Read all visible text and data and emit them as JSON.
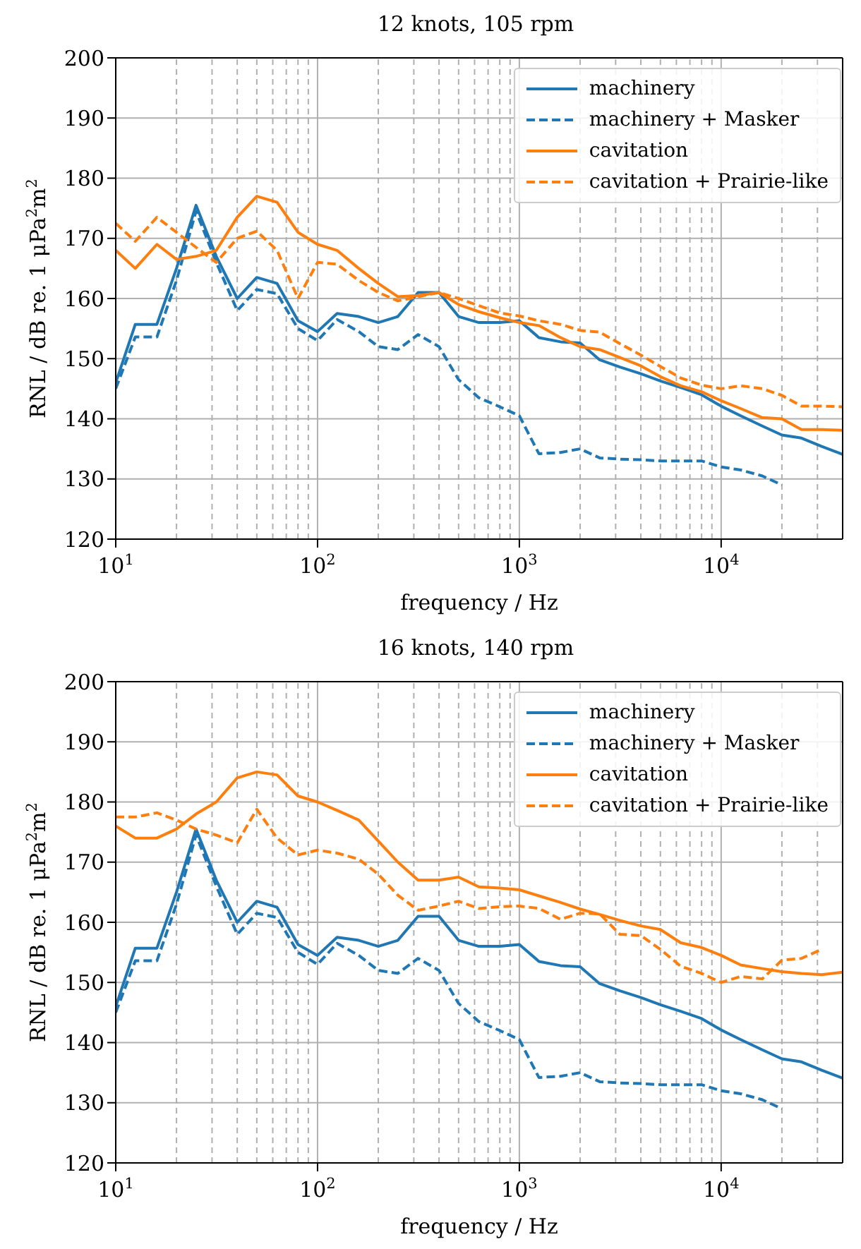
{
  "chart_data": [
    {
      "type": "line",
      "title": "12 knots, 105 rpm",
      "xlabel": "frequency / Hz",
      "ylabel": "RNL / dB re. 1 μPa$^{2}$m$^{2}$",
      "log": "x",
      "grid": true,
      "legend": "top right",
      "marker": "none",
      "x": [
        10,
        12.5,
        16,
        20,
        25,
        31.5,
        40,
        50,
        63,
        80,
        100,
        125,
        160,
        200,
        250,
        315,
        400,
        500,
        630,
        800,
        1000,
        1250,
        1600,
        2000,
        2500,
        3150,
        4000,
        5000,
        6300,
        8000,
        10000,
        12500,
        16000,
        20000,
        25000,
        31500,
        40000
      ],
      "xlim": [
        10,
        40000
      ],
      "ylim": [
        120,
        200
      ],
      "yticks": [
        120,
        130,
        140,
        150,
        160,
        170,
        180,
        190,
        200
      ],
      "xticks": [
        {
          "value": 10,
          "label": "10$^{1}$"
        },
        {
          "value": 20,
          "label": null
        },
        {
          "value": 30,
          "label": null
        },
        {
          "value": 40,
          "label": null
        },
        {
          "value": 50,
          "label": null
        },
        {
          "value": 60,
          "label": null
        },
        {
          "value": 70,
          "label": null
        },
        {
          "value": 80,
          "label": null
        },
        {
          "value": 90,
          "label": null
        },
        {
          "value": 100,
          "label": "10$^{2}$"
        },
        {
          "value": 200,
          "label": null
        },
        {
          "value": 300,
          "label": null
        },
        {
          "value": 400,
          "label": null
        },
        {
          "value": 500,
          "label": null
        },
        {
          "value": 600,
          "label": null
        },
        {
          "value": 700,
          "label": null
        },
        {
          "value": 800,
          "label": null
        },
        {
          "value": 900,
          "label": null
        },
        {
          "value": 1000,
          "label": "10$^{3}$"
        },
        {
          "value": 2000,
          "label": null
        },
        {
          "value": 3000,
          "label": null
        },
        {
          "value": 4000,
          "label": null
        },
        {
          "value": 5000,
          "label": null
        },
        {
          "value": 6000,
          "label": null
        },
        {
          "value": 7000,
          "label": null
        },
        {
          "value": 8000,
          "label": null
        },
        {
          "value": 9000,
          "label": null
        },
        {
          "value": 10000,
          "label": "10$^{4}$"
        },
        {
          "value": 20000,
          "label": null
        },
        {
          "value": 30000,
          "label": null
        }
      ],
      "series": [
        {
          "name": "machinery",
          "color": "#1f77b4",
          "line_style": "solid",
          "values": [
            146,
            155.7,
            155.7,
            165,
            175.5,
            167,
            160,
            163.5,
            162.5,
            156.3,
            154.5,
            157.5,
            157,
            156,
            157,
            161,
            161,
            157,
            156,
            156,
            156.3,
            153.5,
            152.8,
            152.6,
            149.8,
            148.6,
            147.5,
            146.3,
            145.2,
            144,
            142.1,
            140.5,
            138.8,
            137.3,
            136.8,
            135.4,
            134.1
          ]
        },
        {
          "name": "machinery + Masker",
          "color": "#1f77b4",
          "line_style": "dashed",
          "values": [
            145,
            153.6,
            153.6,
            163,
            174.5,
            166,
            158,
            161.5,
            160.8,
            155,
            153,
            156.5,
            154.5,
            152,
            151.5,
            154,
            152,
            146.5,
            143.5,
            142,
            140.5,
            134.2,
            134.4,
            135,
            133.5,
            133.3,
            133.2,
            133,
            133,
            133,
            132,
            131.5,
            130.5,
            129,
            null,
            null,
            null
          ]
        },
        {
          "name": "cavitation",
          "color": "#ff7f0e",
          "line_style": "solid",
          "values": [
            168,
            165,
            169,
            166.5,
            167,
            168,
            173.5,
            177,
            176,
            171,
            169,
            168,
            165,
            162.5,
            160.3,
            160.5,
            161,
            159,
            157.8,
            156.8,
            156,
            155.5,
            153.5,
            152,
            151.5,
            150.2,
            148.8,
            147,
            145.5,
            144.5,
            143,
            141.7,
            140.2,
            140,
            138.2,
            138.2,
            138.1
          ]
        },
        {
          "name": "cavitation + Prairie-like",
          "color": "#ff7f0e",
          "line_style": "dashed",
          "values": [
            172.5,
            169.5,
            173.5,
            171,
            168.5,
            166,
            170,
            171.2,
            168,
            160,
            166,
            165.7,
            163,
            161,
            159.6,
            160.3,
            161,
            160,
            158.8,
            157.6,
            157.1,
            156.3,
            155.7,
            154.7,
            154.4,
            152.5,
            150.6,
            148.7,
            146.8,
            145.6,
            145,
            145.5,
            145,
            143.9,
            142.1,
            142.1,
            142
          ]
        }
      ]
    },
    {
      "type": "line",
      "title": "16 knots, 140 rpm",
      "xlabel": "frequency / Hz",
      "ylabel": "RNL / dB re. 1 μPa$^{2}$m$^{2}$",
      "log": "x",
      "grid": true,
      "legend": "top right",
      "marker": "none",
      "x": [
        10,
        12.5,
        16,
        20,
        25,
        31.5,
        40,
        50,
        63,
        80,
        100,
        125,
        160,
        200,
        250,
        315,
        400,
        500,
        630,
        800,
        1000,
        1250,
        1600,
        2000,
        2500,
        3150,
        4000,
        5000,
        6300,
        8000,
        10000,
        12500,
        16000,
        20000,
        25000,
        31500,
        40000
      ],
      "xlim": [
        10,
        40000
      ],
      "ylim": [
        120,
        200
      ],
      "yticks": [
        120,
        130,
        140,
        150,
        160,
        170,
        180,
        190,
        200
      ],
      "xticks": [
        {
          "value": 10,
          "label": "10$^{1}$"
        },
        {
          "value": 20,
          "label": null
        },
        {
          "value": 30,
          "label": null
        },
        {
          "value": 40,
          "label": null
        },
        {
          "value": 50,
          "label": null
        },
        {
          "value": 60,
          "label": null
        },
        {
          "value": 70,
          "label": null
        },
        {
          "value": 80,
          "label": null
        },
        {
          "value": 90,
          "label": null
        },
        {
          "value": 100,
          "label": "10$^{2}$"
        },
        {
          "value": 200,
          "label": null
        },
        {
          "value": 300,
          "label": null
        },
        {
          "value": 400,
          "label": null
        },
        {
          "value": 500,
          "label": null
        },
        {
          "value": 600,
          "label": null
        },
        {
          "value": 700,
          "label": null
        },
        {
          "value": 800,
          "label": null
        },
        {
          "value": 900,
          "label": null
        },
        {
          "value": 1000,
          "label": "10$^{3}$"
        },
        {
          "value": 2000,
          "label": null
        },
        {
          "value": 3000,
          "label": null
        },
        {
          "value": 4000,
          "label": null
        },
        {
          "value": 5000,
          "label": null
        },
        {
          "value": 6000,
          "label": null
        },
        {
          "value": 7000,
          "label": null
        },
        {
          "value": 8000,
          "label": null
        },
        {
          "value": 9000,
          "label": null
        },
        {
          "value": 10000,
          "label": "10$^{4}$"
        },
        {
          "value": 20000,
          "label": null
        },
        {
          "value": 30000,
          "label": null
        }
      ],
      "series": [
        {
          "name": "machinery",
          "color": "#1f77b4",
          "line_style": "solid",
          "values": [
            146,
            155.7,
            155.7,
            165,
            175.5,
            167,
            160,
            163.5,
            162.5,
            156.3,
            154.5,
            157.5,
            157,
            156,
            157,
            161,
            161,
            157,
            156,
            156,
            156.3,
            153.5,
            152.8,
            152.6,
            149.8,
            148.6,
            147.5,
            146.3,
            145.2,
            144,
            142.1,
            140.5,
            138.8,
            137.3,
            136.8,
            135.4,
            134.1
          ]
        },
        {
          "name": "machinery + Masker",
          "color": "#1f77b4",
          "line_style": "dashed",
          "values": [
            145,
            153.6,
            153.6,
            163,
            174.5,
            166,
            158,
            161.5,
            160.8,
            155,
            153,
            156.5,
            154.5,
            152,
            151.5,
            154,
            152,
            146.5,
            143.5,
            142,
            140.5,
            134.2,
            134.4,
            135,
            133.5,
            133.3,
            133.2,
            133,
            133,
            133,
            132,
            131.5,
            130.5,
            129,
            null,
            null,
            null
          ]
        },
        {
          "name": "cavitation",
          "color": "#ff7f0e",
          "line_style": "solid",
          "values": [
            176,
            174,
            174,
            175.5,
            178,
            180,
            184,
            185,
            184.5,
            181,
            180,
            178.6,
            177,
            173.5,
            170,
            167,
            167,
            167.5,
            165.9,
            165.7,
            165.4,
            164.4,
            163.3,
            162.2,
            161.3,
            160.3,
            159.4,
            158.8,
            156.6,
            155.8,
            154.5,
            152.9,
            152.3,
            151.8,
            151.5,
            151.3,
            151.7
          ]
        },
        {
          "name": "cavitation + Prairie-like",
          "color": "#ff7f0e",
          "line_style": "dashed",
          "values": [
            177.5,
            177.5,
            178.2,
            177,
            175.5,
            174.5,
            173.2,
            178.8,
            174,
            171.2,
            172,
            171.5,
            170.5,
            168,
            164.5,
            162,
            162.7,
            163.5,
            162.3,
            162.6,
            162.7,
            162.3,
            160.5,
            161.5,
            161.4,
            158,
            157.8,
            155.5,
            152.7,
            151.5,
            150,
            151,
            150.6,
            153.7,
            154,
            155.5,
            null
          ]
        }
      ]
    }
  ]
}
